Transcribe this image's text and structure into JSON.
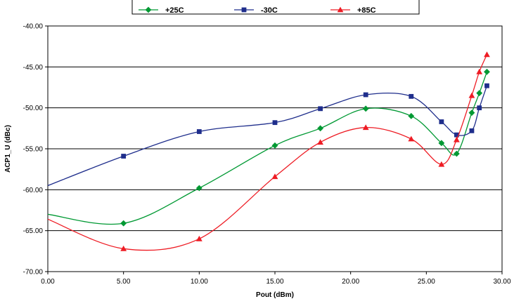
{
  "chart_data": {
    "type": "line",
    "title": "",
    "xlabel": "Pout (dBm)",
    "ylabel": "ACP1_U (dBc)",
    "xlim": [
      0,
      30
    ],
    "ylim": [
      -70,
      -40
    ],
    "x_ticks": [
      "0.00",
      "5.00",
      "10.00",
      "15.00",
      "20.00",
      "25.00",
      "30.00"
    ],
    "y_ticks": [
      "-40.00",
      "-45.00",
      "-50.00",
      "-55.00",
      "-60.00",
      "-65.00",
      "-70.00"
    ],
    "grid": "horizontal",
    "legend_position": "top",
    "series": [
      {
        "name": "+25C",
        "color": "#009933",
        "marker": "diamond",
        "x": [
          0,
          5,
          10,
          15,
          18,
          21,
          24,
          26,
          27,
          28,
          28.5,
          29
        ],
        "y": [
          -63.0,
          -64.1,
          -59.8,
          -54.6,
          -52.5,
          -50.1,
          -51.0,
          -54.3,
          -55.6,
          -50.6,
          -48.2,
          -45.6
        ]
      },
      {
        "name": "-30C",
        "color": "#1f2e8c",
        "marker": "square",
        "x": [
          0,
          5,
          10,
          15,
          18,
          21,
          24,
          26,
          27,
          28,
          28.5,
          29
        ],
        "y": [
          -59.5,
          -55.9,
          -52.9,
          -51.8,
          -50.1,
          -48.4,
          -48.6,
          -51.7,
          -53.3,
          -52.8,
          -50.0,
          -47.3
        ]
      },
      {
        "name": "+85C",
        "color": "#ee1c24",
        "marker": "triangle",
        "x": [
          0,
          5,
          10,
          15,
          18,
          21,
          24,
          26,
          27,
          28,
          28.5,
          29
        ],
        "y": [
          -63.6,
          -67.2,
          -66.0,
          -58.4,
          -54.2,
          -52.4,
          -53.8,
          -56.9,
          -53.9,
          -48.5,
          -45.6,
          -43.5
        ]
      }
    ]
  }
}
